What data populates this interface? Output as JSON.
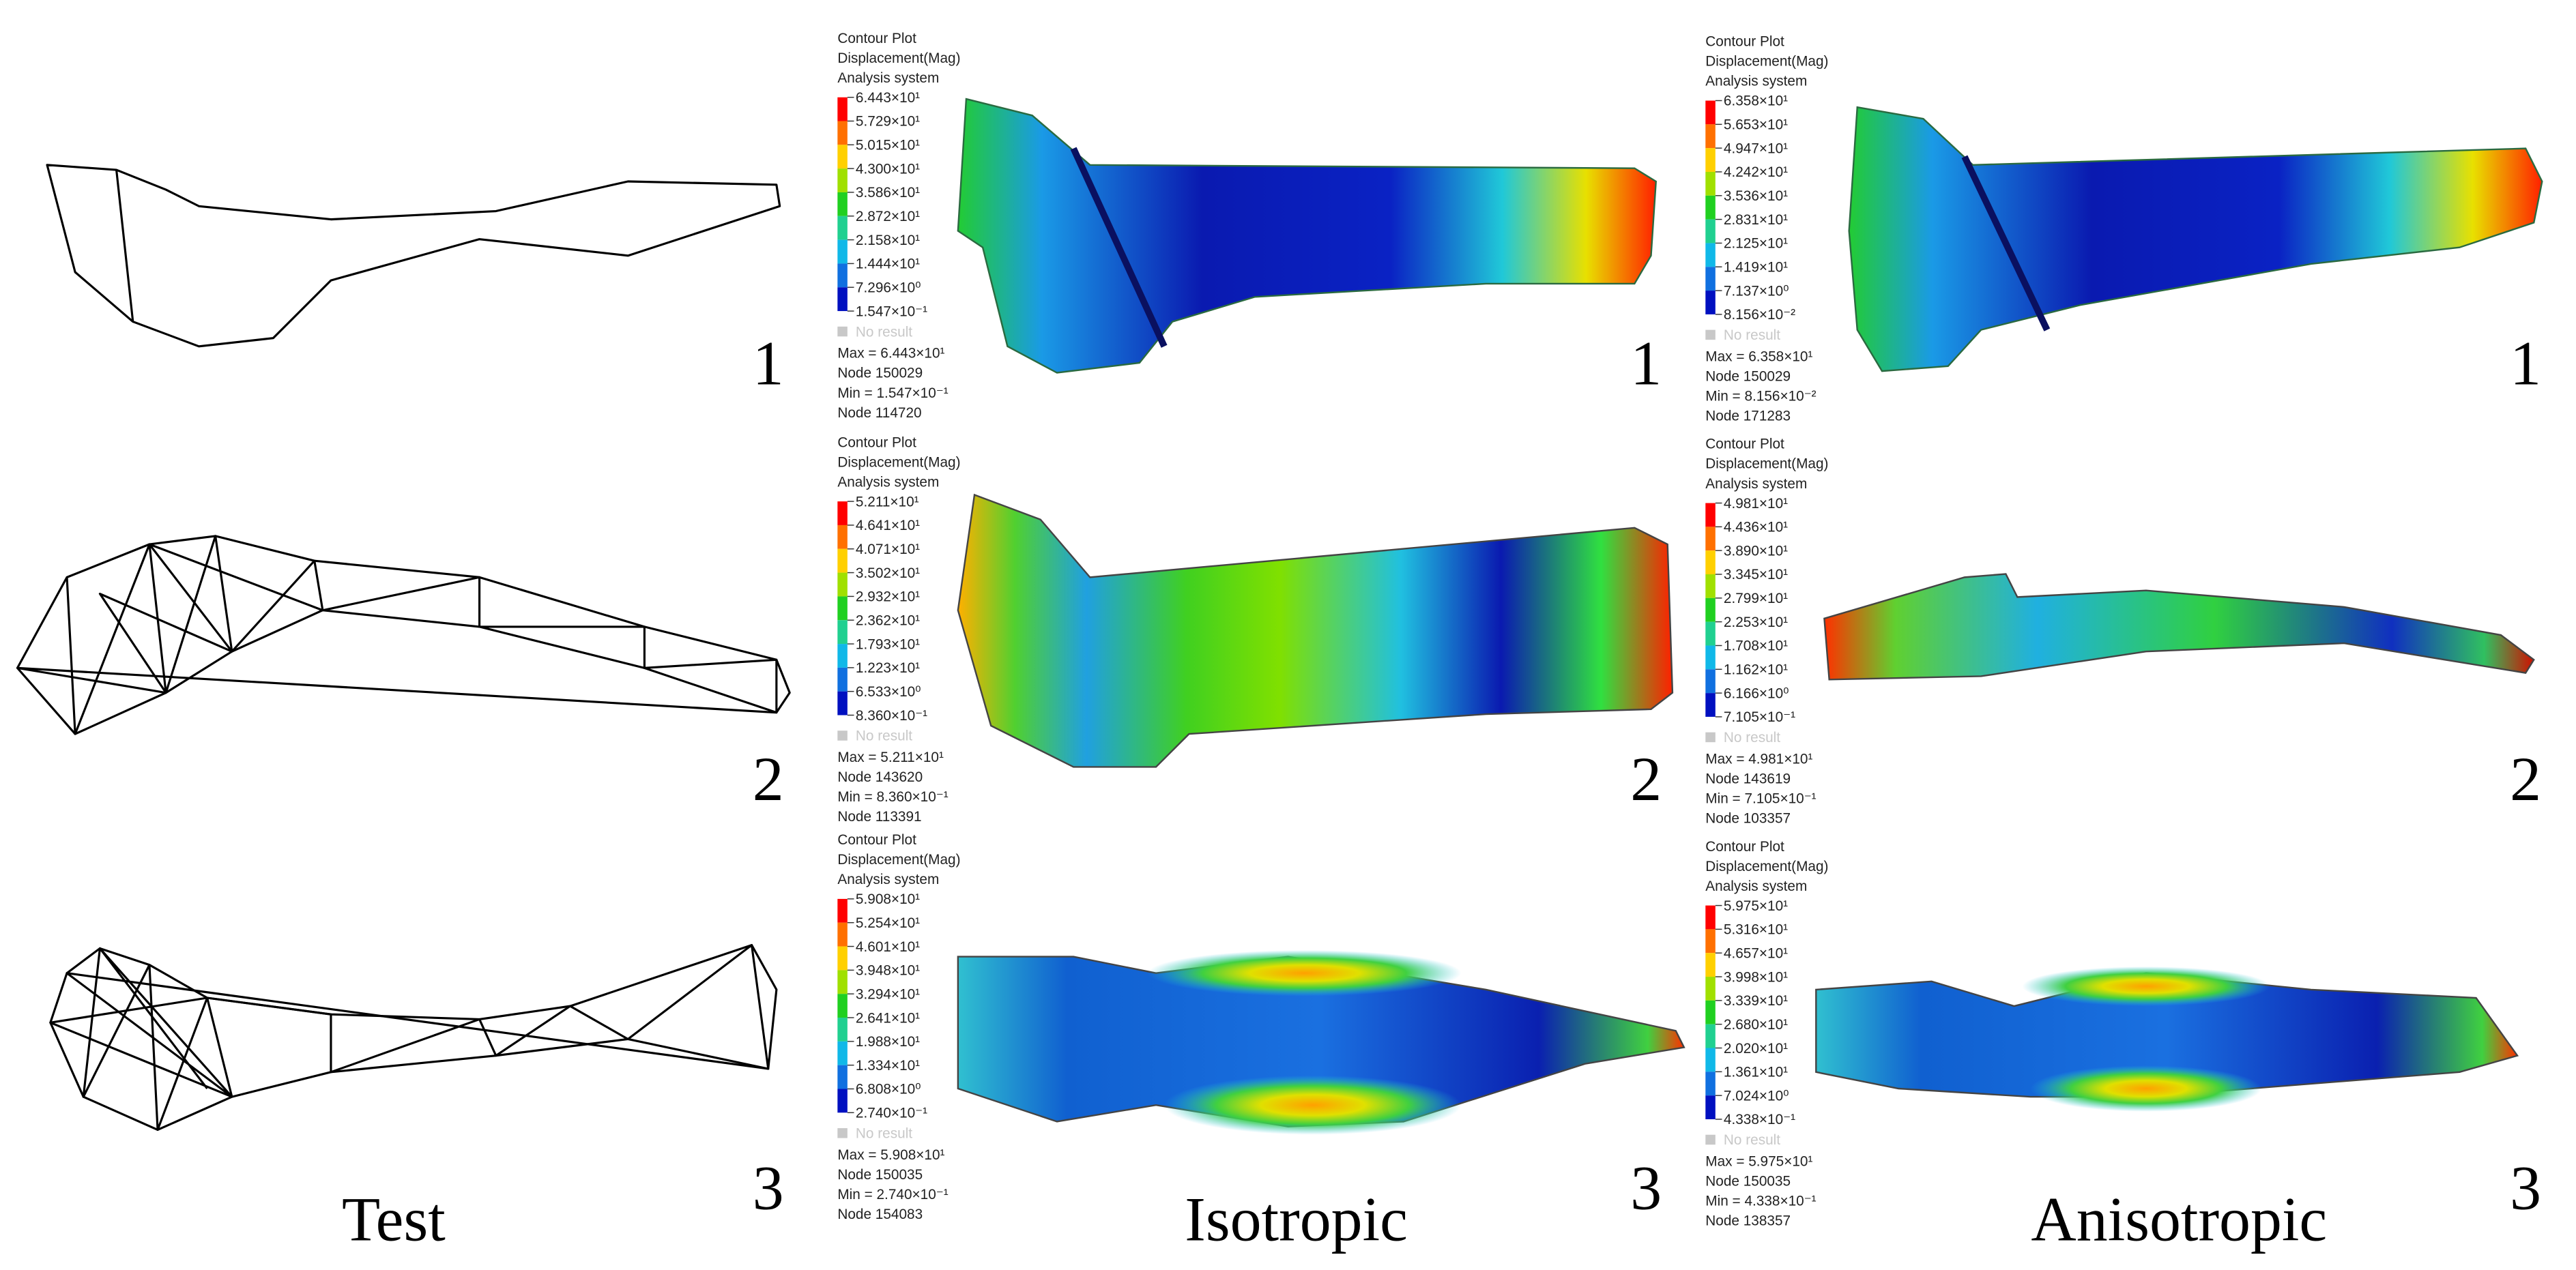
{
  "test": {
    "label": "Test",
    "numbers": [
      "1",
      "2",
      "3"
    ]
  },
  "isotropic": {
    "label": "Isotropic",
    "panels": [
      {
        "number": "1",
        "legend": {
          "title": [
            "Contour Plot",
            "Displacement(Mag)",
            "Analysis system"
          ],
          "levels": [
            "6.443×10¹",
            "5.729×10¹",
            "5.015×10¹",
            "4.300×10¹",
            "3.586×10¹",
            "2.872×10¹",
            "2.158×10¹",
            "1.444×10¹",
            "7.296×10⁰",
            "1.547×10⁻¹"
          ],
          "no_result": "No result",
          "stats": [
            "Max = 6.443×10¹",
            "Node 150029",
            "Min = 1.547×10⁻¹",
            "Node 114720"
          ]
        }
      },
      {
        "number": "2",
        "legend": {
          "title": [
            "Contour Plot",
            "Displacement(Mag)",
            "Analysis system"
          ],
          "levels": [
            "5.211×10¹",
            "4.641×10¹",
            "4.071×10¹",
            "3.502×10¹",
            "2.932×10¹",
            "2.362×10¹",
            "1.793×10¹",
            "1.223×10¹",
            "6.533×10⁰",
            "8.360×10⁻¹"
          ],
          "no_result": "No result",
          "stats": [
            "Max = 5.211×10¹",
            "Node 143620",
            "Min = 8.360×10⁻¹",
            "Node 113391"
          ]
        }
      },
      {
        "number": "3",
        "legend": {
          "title": [
            "Contour Plot",
            "Displacement(Mag)",
            "Analysis system"
          ],
          "levels": [
            "5.908×10¹",
            "5.254×10¹",
            "4.601×10¹",
            "3.948×10¹",
            "3.294×10¹",
            "2.641×10¹",
            "1.988×10¹",
            "1.334×10¹",
            "6.808×10⁰",
            "2.740×10⁻¹"
          ],
          "no_result": "No result",
          "stats": [
            "Max = 5.908×10¹",
            "Node 150035",
            "Min = 2.740×10⁻¹",
            "Node 154083"
          ]
        }
      }
    ]
  },
  "anisotropic": {
    "label": "Anisotropic",
    "panels": [
      {
        "number": "1",
        "legend": {
          "title": [
            "Contour Plot",
            "Displacement(Mag)",
            "Analysis system"
          ],
          "levels": [
            "6.358×10¹",
            "5.653×10¹",
            "4.947×10¹",
            "4.242×10¹",
            "3.536×10¹",
            "2.831×10¹",
            "2.125×10¹",
            "1.419×10¹",
            "7.137×10⁰",
            "8.156×10⁻²"
          ],
          "no_result": "No result",
          "stats": [
            "Max = 6.358×10¹",
            "Node 150029",
            "Min = 8.156×10⁻²",
            "Node 171283"
          ]
        }
      },
      {
        "number": "2",
        "legend": {
          "title": [
            "Contour Plot",
            "Displacement(Mag)",
            "Analysis system"
          ],
          "levels": [
            "4.981×10¹",
            "4.436×10¹",
            "3.890×10¹",
            "3.345×10¹",
            "2.799×10¹",
            "2.253×10¹",
            "1.708×10¹",
            "1.162×10¹",
            "6.166×10⁰",
            "7.105×10⁻¹"
          ],
          "no_result": "No result",
          "stats": [
            "Max = 4.981×10¹",
            "Node 143619",
            "Min = 7.105×10⁻¹",
            "Node 103357"
          ]
        }
      },
      {
        "number": "3",
        "legend": {
          "title": [
            "Contour Plot",
            "Displacement(Mag)",
            "Analysis system"
          ],
          "levels": [
            "5.975×10¹",
            "5.316×10¹",
            "4.657×10¹",
            "3.998×10¹",
            "3.339×10¹",
            "2.680×10¹",
            "2.020×10¹",
            "1.361×10¹",
            "7.024×10⁰",
            "4.338×10⁻¹"
          ],
          "no_result": "No result",
          "stats": [
            "Max = 5.975×10¹",
            "Node 150035",
            "Min = 4.338×10⁻¹",
            "Node 138357"
          ]
        }
      }
    ]
  }
}
